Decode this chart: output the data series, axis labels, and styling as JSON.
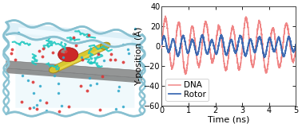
{
  "xlabel": "Time (ns)",
  "ylabel": "Y-position (Å)",
  "xlim": [
    0,
    5
  ],
  "ylim": [
    -60,
    40
  ],
  "yticks": [
    -60,
    -40,
    -20,
    0,
    20,
    40
  ],
  "xticks": [
    0,
    1,
    2,
    3,
    4,
    5
  ],
  "dna_color": "#F08080",
  "rotor_color": "#3565B0",
  "legend_dna": "DNA",
  "legend_rotor": "Rotor",
  "background_color": "#ffffff",
  "tick_fontsize": 7,
  "label_fontsize": 8,
  "legend_fontsize": 7.5,
  "linewidth_dna": 1.1,
  "linewidth_rotor": 1.3,
  "ice_outer": "#c8e8f0",
  "ice_inner": "#e8f5fa",
  "ice_edge": "#90c8d8",
  "ice_wave": "#a0ccd8",
  "membrane_color": "#909090",
  "cnt_body": "#d8c840",
  "cnt_edge": "#b09830",
  "red_ball": "#cc3030",
  "dna_strand_color": "#28c8c0",
  "ion_red": "#dd3333",
  "ion_cyan": "#33aacc"
}
